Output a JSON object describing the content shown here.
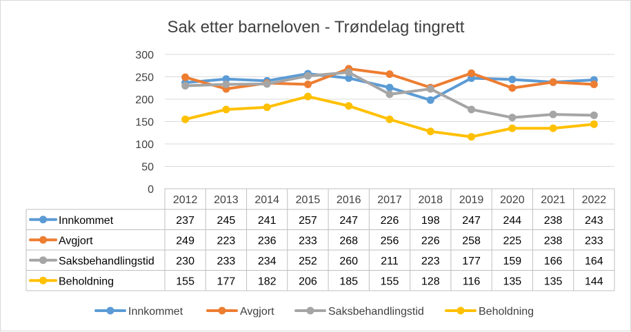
{
  "chart_data": {
    "type": "line",
    "title": "Sak etter barneloven - Trøndelag tingrett",
    "categories": [
      "2012",
      "2013",
      "2014",
      "2015",
      "2016",
      "2017",
      "2018",
      "2019",
      "2020",
      "2021",
      "2022"
    ],
    "ylim": [
      0,
      300
    ],
    "yticks": [
      0,
      50,
      100,
      150,
      200,
      250,
      300
    ],
    "grid": true,
    "legend_position": "bottom",
    "data_table": true,
    "series": [
      {
        "name": "Innkommet",
        "color": "#5b9bd5",
        "values": [
          237,
          245,
          241,
          257,
          247,
          226,
          198,
          247,
          244,
          238,
          243
        ]
      },
      {
        "name": "Avgjort",
        "color": "#ed7d31",
        "values": [
          249,
          223,
          236,
          233,
          268,
          256,
          226,
          258,
          225,
          238,
          233
        ]
      },
      {
        "name": "Saksbehandlingstid",
        "color": "#a5a5a5",
        "values": [
          230,
          233,
          234,
          252,
          260,
          211,
          223,
          177,
          159,
          166,
          164
        ]
      },
      {
        "name": "Beholdning",
        "color": "#ffc000",
        "values": [
          155,
          177,
          182,
          206,
          185,
          155,
          128,
          116,
          135,
          135,
          144
        ]
      }
    ]
  }
}
